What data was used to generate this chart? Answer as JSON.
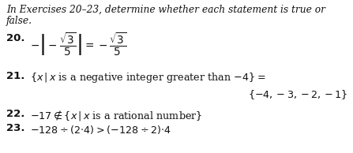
{
  "bg_color": "#ffffff",
  "text_color": "#111111",
  "fig_width": 4.47,
  "fig_height": 1.94,
  "dpi": 100,
  "header_line1": "In Exercises 20–23, determine whether each statement is true or",
  "header_line2": "false.",
  "ex20_label": "20.",
  "ex20_math": "$-\\left|-\\dfrac{\\sqrt{3}}{5}\\right| = -\\dfrac{\\sqrt{3}}{5}$",
  "ex21_label": "21.",
  "ex21_text": "$\\{x\\,|\\,x$ is a negative integer greater than $-4\\} =$",
  "ex21_answer": "$\\{-4, -3, -2, -1\\}$",
  "ex22_label": "22.",
  "ex22_text": "$-17 \\notin \\{x\\,|\\,x$ is a rational number$\\}$",
  "ex23_label": "23.",
  "ex23_text": "$-128 \\div (2 {\\cdot} 4) > (-128 \\div 2){\\cdot}4$",
  "fs_header": 8.8,
  "fs_bold": 9.5,
  "fs_body": 9.2,
  "fs_math20": 9.8
}
